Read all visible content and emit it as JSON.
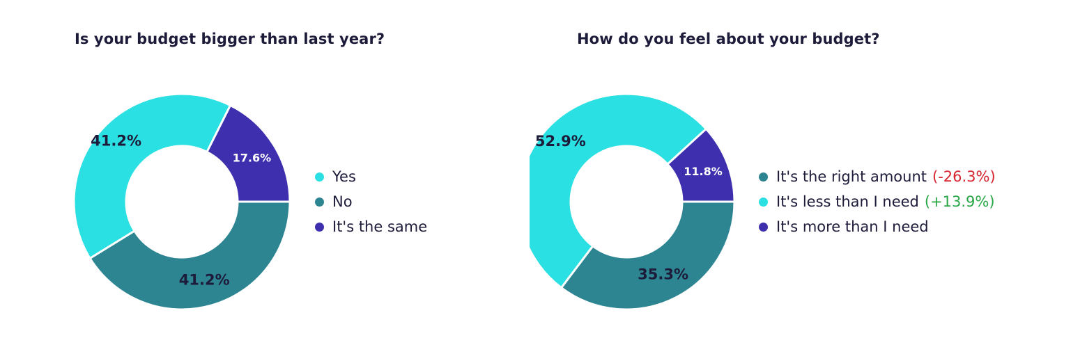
{
  "colors": {
    "cyan": "#2be0e2",
    "teal": "#2d8592",
    "purple": "#3d2fae",
    "label_dark": "#1d1b3a",
    "label_light": "#ffffff",
    "negative": "#d6252e",
    "positive": "#27a745"
  },
  "chart_data": [
    {
      "type": "pie",
      "variant": "donut",
      "title": "Is your budget bigger than last year?",
      "slices": [
        {
          "name": "It's the same",
          "value": 17.6,
          "label": "17.6%",
          "color": "#3d2fae",
          "label_color": "#ffffff"
        },
        {
          "name": "No",
          "value": 41.2,
          "label": "41.2%",
          "color": "#2d8592",
          "label_color": "#1d1b3a"
        },
        {
          "name": "Yes",
          "value": 41.2,
          "label": "41.2%",
          "color": "#2be0e2",
          "label_color": "#1d1b3a"
        }
      ],
      "legend": {
        "placement": "right",
        "items": [
          {
            "label": "Yes",
            "color": "#2be0e2",
            "change": ""
          },
          {
            "label": "No",
            "color": "#2d8592",
            "change": ""
          },
          {
            "label": "It's the same",
            "color": "#3d2fae",
            "change": ""
          }
        ]
      }
    },
    {
      "type": "pie",
      "variant": "donut",
      "title": "How do you feel about your budget?",
      "slices": [
        {
          "name": "It's more than I need",
          "value": 11.8,
          "label": "11.8%",
          "color": "#3d2fae",
          "label_color": "#ffffff"
        },
        {
          "name": "It's the right amount",
          "value": 35.3,
          "label": "35.3%",
          "color": "#2d8592",
          "label_color": "#1d1b3a"
        },
        {
          "name": "It's less than I need",
          "value": 52.9,
          "label": "52.9%",
          "color": "#2be0e2",
          "label_color": "#1d1b3a"
        }
      ],
      "legend": {
        "placement": "right",
        "items": [
          {
            "label": "It's the right amount",
            "color": "#2d8592",
            "change": "(-26.3%)",
            "change_type": "negative"
          },
          {
            "label": "It's less than I need",
            "color": "#2be0e2",
            "change": "(+13.9%)",
            "change_type": "positive"
          },
          {
            "label": "It's more than I need",
            "color": "#3d2fae",
            "change": ""
          }
        ]
      }
    }
  ]
}
